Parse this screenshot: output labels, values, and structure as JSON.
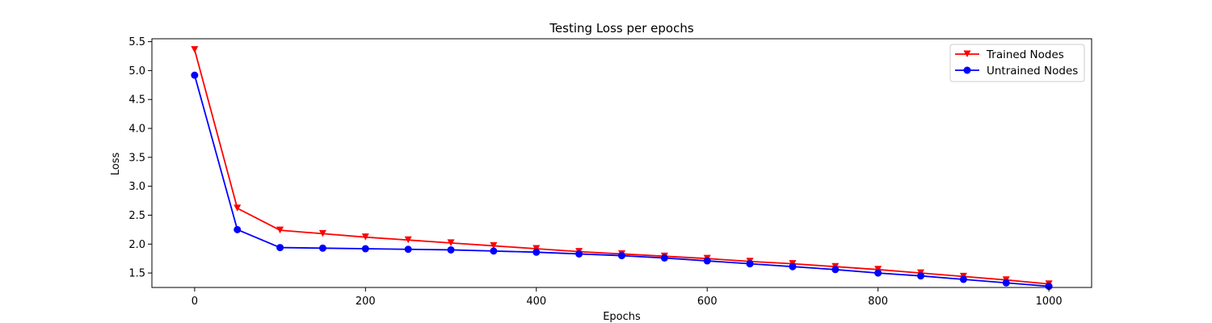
{
  "chart_data": {
    "type": "line",
    "title": "Testing Loss per epochs",
    "xlabel": "Epochs",
    "ylabel": "Loss",
    "xlim": [
      -50,
      1050
    ],
    "ylim": [
      1.25,
      5.55
    ],
    "xticks": [
      0,
      200,
      400,
      600,
      800,
      1000
    ],
    "yticks": [
      1.5,
      2.0,
      2.5,
      3.0,
      3.5,
      4.0,
      4.5,
      5.0,
      5.5
    ],
    "x": [
      0,
      50,
      100,
      150,
      200,
      250,
      300,
      350,
      400,
      450,
      500,
      550,
      600,
      650,
      700,
      750,
      800,
      850,
      900,
      950,
      1000
    ],
    "series": [
      {
        "name": "Trained Nodes",
        "color": "#ff0000",
        "marker": "triangle-down",
        "values": [
          5.36,
          2.62,
          2.24,
          2.18,
          2.12,
          2.07,
          2.02,
          1.97,
          1.92,
          1.87,
          1.83,
          1.79,
          1.75,
          1.7,
          1.66,
          1.61,
          1.56,
          1.5,
          1.44,
          1.38,
          1.31
        ]
      },
      {
        "name": "Untrained Nodes",
        "color": "#0000ff",
        "marker": "circle",
        "values": [
          4.92,
          2.25,
          1.94,
          1.93,
          1.92,
          1.91,
          1.9,
          1.88,
          1.86,
          1.83,
          1.8,
          1.76,
          1.71,
          1.66,
          1.61,
          1.56,
          1.5,
          1.45,
          1.39,
          1.33,
          1.27
        ]
      }
    ],
    "legend_position": "top-right",
    "grid": false
  }
}
